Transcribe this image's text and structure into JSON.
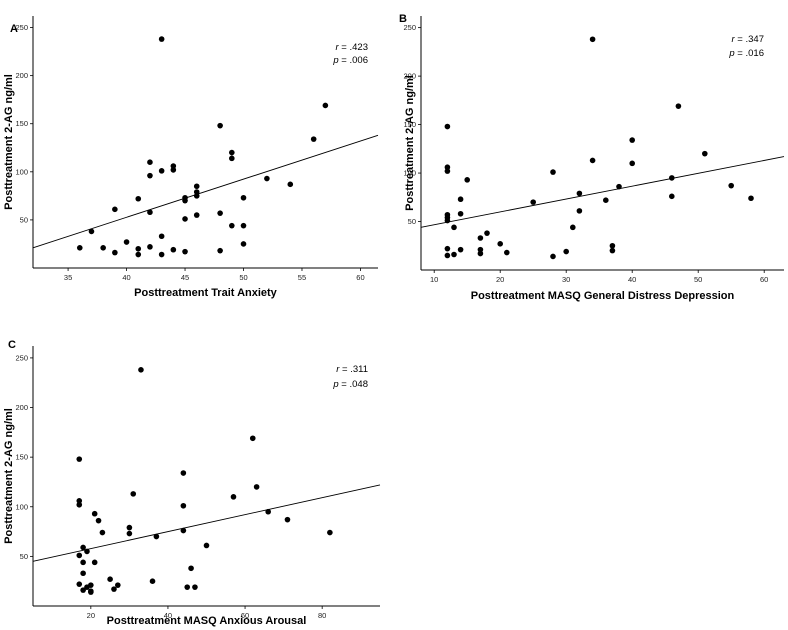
{
  "chart_data": [
    {
      "type": "scatter",
      "panel": "A",
      "xlabel": "Posttreatment Trait Anxiety",
      "ylabel": "Posttreatment 2-AG ng/ml",
      "xlim": [
        32,
        61.5
      ],
      "ylim": [
        0,
        262
      ],
      "xticks": [
        35,
        40,
        45,
        50,
        55,
        60
      ],
      "yticks": [
        50,
        100,
        150,
        200,
        250
      ],
      "stats": {
        "r_label": "r",
        "r_value": "= .423",
        "p_label": "p",
        "p_value": "= .006"
      },
      "fit_line": {
        "x": [
          32,
          61.5
        ],
        "y": [
          21,
          138
        ]
      },
      "points": [
        [
          36,
          21
        ],
        [
          37,
          38
        ],
        [
          38,
          21
        ],
        [
          39,
          61
        ],
        [
          39,
          16
        ],
        [
          40,
          27
        ],
        [
          41,
          20
        ],
        [
          41,
          14
        ],
        [
          41,
          72
        ],
        [
          42,
          110
        ],
        [
          42,
          96
        ],
        [
          42,
          58
        ],
        [
          42,
          22
        ],
        [
          43,
          238
        ],
        [
          43,
          101
        ],
        [
          43,
          33
        ],
        [
          43,
          14
        ],
        [
          44,
          106
        ],
        [
          44,
          102
        ],
        [
          44,
          19
        ],
        [
          45,
          73
        ],
        [
          45,
          70
        ],
        [
          45,
          51
        ],
        [
          45,
          17
        ],
        [
          46,
          85
        ],
        [
          46,
          79
        ],
        [
          46,
          75
        ],
        [
          46,
          55
        ],
        [
          48,
          148
        ],
        [
          48,
          57
        ],
        [
          48,
          18
        ],
        [
          49,
          120
        ],
        [
          49,
          114
        ],
        [
          49,
          44
        ],
        [
          50,
          73
        ],
        [
          50,
          44
        ],
        [
          50,
          25
        ],
        [
          52,
          93
        ],
        [
          54,
          87
        ],
        [
          56,
          134
        ],
        [
          57,
          169
        ]
      ]
    },
    {
      "type": "scatter",
      "panel": "B",
      "xlabel": "Posttreatment MASQ General Distress Depression",
      "ylabel": "Posttreatment 2-AG ng/ml",
      "xlim": [
        8,
        63
      ],
      "ylim": [
        0,
        262
      ],
      "xticks": [
        10,
        20,
        30,
        40,
        50,
        60
      ],
      "yticks": [
        50,
        100,
        150,
        200,
        250
      ],
      "stats": {
        "r_label": "r",
        "r_value": "= .347",
        "p_label": "p",
        "p_value": "= .016"
      },
      "fit_line": {
        "x": [
          8,
          63
        ],
        "y": [
          44,
          117
        ]
      },
      "points": [
        [
          12,
          148
        ],
        [
          12,
          106
        ],
        [
          12,
          102
        ],
        [
          12,
          57
        ],
        [
          12,
          54
        ],
        [
          12,
          51
        ],
        [
          12,
          22
        ],
        [
          12,
          15
        ],
        [
          13,
          44
        ],
        [
          13,
          16
        ],
        [
          14,
          73
        ],
        [
          14,
          58
        ],
        [
          14,
          21
        ],
        [
          15,
          93
        ],
        [
          17,
          33
        ],
        [
          17,
          21
        ],
        [
          17,
          17
        ],
        [
          18,
          38
        ],
        [
          20,
          27
        ],
        [
          21,
          18
        ],
        [
          25,
          70
        ],
        [
          28,
          101
        ],
        [
          28,
          14
        ],
        [
          30,
          19
        ],
        [
          31,
          44
        ],
        [
          32,
          79
        ],
        [
          32,
          61
        ],
        [
          34,
          238
        ],
        [
          34,
          113
        ],
        [
          36,
          72
        ],
        [
          37,
          25
        ],
        [
          37,
          20
        ],
        [
          38,
          86
        ],
        [
          40,
          134
        ],
        [
          40,
          110
        ],
        [
          46,
          95
        ],
        [
          46,
          76
        ],
        [
          47,
          169
        ],
        [
          51,
          120
        ],
        [
          55,
          87
        ],
        [
          58,
          74
        ]
      ]
    },
    {
      "type": "scatter",
      "panel": "C",
      "xlabel": "Posttreatment MASQ Anxious Arousal",
      "ylabel": "Posttreatment 2-AG ng/ml",
      "xlim": [
        5,
        95
      ],
      "ylim": [
        0,
        262
      ],
      "xticks": [
        20,
        40,
        60,
        80
      ],
      "yticks": [
        50,
        100,
        150,
        200,
        250
      ],
      "stats": {
        "r_label": "r",
        "r_value": "= .311",
        "p_label": "p",
        "p_value": "= .048"
      },
      "fit_line": {
        "x": [
          5,
          95
        ],
        "y": [
          45,
          122
        ]
      },
      "points": [
        [
          17,
          148
        ],
        [
          17,
          106
        ],
        [
          17,
          102
        ],
        [
          17,
          51
        ],
        [
          17,
          22
        ],
        [
          18,
          59
        ],
        [
          18,
          44
        ],
        [
          18,
          33
        ],
        [
          18,
          16
        ],
        [
          19,
          55
        ],
        [
          19,
          19
        ],
        [
          20,
          15
        ],
        [
          20,
          14
        ],
        [
          20,
          21
        ],
        [
          21,
          93
        ],
        [
          21,
          44
        ],
        [
          22,
          86
        ],
        [
          23,
          74
        ],
        [
          25,
          27
        ],
        [
          26,
          17
        ],
        [
          27,
          21
        ],
        [
          30,
          79
        ],
        [
          30,
          73
        ],
        [
          31,
          113
        ],
        [
          33,
          238
        ],
        [
          36,
          25
        ],
        [
          37,
          70
        ],
        [
          44,
          134
        ],
        [
          44,
          101
        ],
        [
          44,
          76
        ],
        [
          45,
          19
        ],
        [
          46,
          38
        ],
        [
          47,
          19
        ],
        [
          50,
          61
        ],
        [
          57,
          110
        ],
        [
          62,
          169
        ],
        [
          63,
          120
        ],
        [
          66,
          95
        ],
        [
          71,
          87
        ],
        [
          82,
          74
        ]
      ]
    }
  ]
}
